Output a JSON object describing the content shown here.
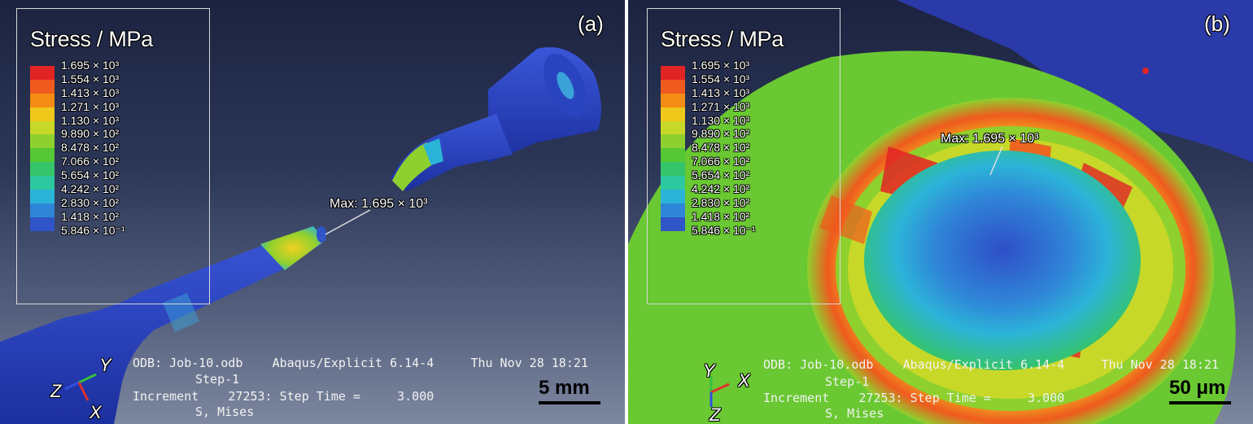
{
  "legend": {
    "title": "Stress / MPa",
    "colors": [
      "#e02424",
      "#ef5a1e",
      "#f58c15",
      "#f0c81c",
      "#c8d828",
      "#8ed12e",
      "#55c836",
      "#35c46a",
      "#2ec8a0",
      "#2cb4d8",
      "#2f86d8",
      "#2f55c8",
      "#2a3aa8"
    ],
    "values": [
      "1.695 × 10³",
      "1.554 × 10³",
      "1.413 × 10³",
      "1.271 × 10³",
      "1.130 × 10³",
      "9.890 × 10²",
      "8.478 × 10²",
      "7.066 × 10²",
      "5.654 × 10²",
      "4.242 × 10²",
      "2.830 × 10²",
      "1.418 × 10²",
      "5.846 × 10⁻¹"
    ]
  },
  "max_label": "Max: 1.695 × 10³",
  "info": {
    "odb": "ODB: Job-10.odb",
    "solver": "Abaqus/Explicit 6.14-4",
    "date": "Thu Nov 28 18:21",
    "step": "Step-1",
    "increment": "Increment    27253: Step Time =     3.000",
    "field": "S, Mises"
  },
  "panels": {
    "a": {
      "letter": "(a)",
      "scalebar": "5 mm",
      "triad": [
        "Y",
        "Z",
        "X"
      ]
    },
    "b": {
      "letter": "(b)",
      "scalebar": "50 μm",
      "triad": [
        "Y",
        "X",
        "Z"
      ]
    }
  }
}
